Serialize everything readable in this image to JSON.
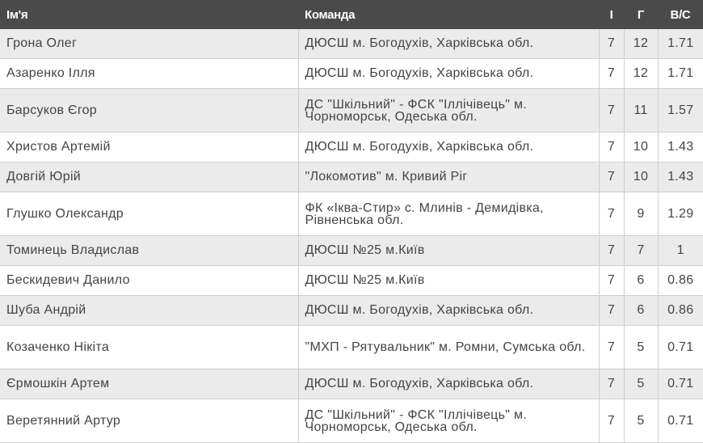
{
  "headers": {
    "name": "Ім'я",
    "team": "Команда",
    "games": "І",
    "goals": "Г",
    "ratio": "В/С"
  },
  "rows": [
    {
      "name": "Грона Олег",
      "team": "ДЮСШ м. Богодухів, Харківська обл.",
      "games": "7",
      "goals": "12",
      "ratio": "1.71"
    },
    {
      "name": "Азаренко Ілля",
      "team": "ДЮСШ м. Богодухів, Харківська обл.",
      "games": "7",
      "goals": "12",
      "ratio": "1.71"
    },
    {
      "name": "Барсуков Єгор",
      "team": "ДС \"Шкільний\" - ФСК \"Іллічівець\" м. Чорноморськ, Одеська обл.",
      "games": "7",
      "goals": "11",
      "ratio": "1.57"
    },
    {
      "name": "Христов Артемій",
      "team": "ДЮСШ м. Богодухів, Харківська обл.",
      "games": "7",
      "goals": "10",
      "ratio": "1.43"
    },
    {
      "name": "Довгій Юрій",
      "team": "\"Локомотив\" м. Кривий Ріг",
      "games": "7",
      "goals": "10",
      "ratio": "1.43"
    },
    {
      "name": "Глушко Олександр",
      "team": "ФК «Іква-Стир» с. Млинів - Демидівка, Рівненська обл.",
      "games": "7",
      "goals": "9",
      "ratio": "1.29"
    },
    {
      "name": "Томинець Владислав",
      "team": "ДЮСШ №25 м.Київ",
      "games": "7",
      "goals": "7",
      "ratio": "1"
    },
    {
      "name": "Бескидевич Данило",
      "team": "ДЮСШ №25 м.Київ",
      "games": "7",
      "goals": "6",
      "ratio": "0.86"
    },
    {
      "name": "Шуба Андрій",
      "team": "ДЮСШ м. Богодухів, Харківська обл.",
      "games": "7",
      "goals": "6",
      "ratio": "0.86"
    },
    {
      "name": "Козаченко Нікіта",
      "team": "\"МХП - Рятувальник\" м. Ромни, Сумська обл.",
      "games": "7",
      "goals": "5",
      "ratio": "0.71"
    },
    {
      "name": "Єрмошкін Артем",
      "team": "ДЮСШ м. Богодухів, Харківська обл.",
      "games": "7",
      "goals": "5",
      "ratio": "0.71"
    },
    {
      "name": "Веретянний Артур",
      "team": "ДС \"Шкільний\" - ФСК \"Іллічівець\" м. Чорноморськ, Одеська обл.",
      "games": "7",
      "goals": "5",
      "ratio": "0.71"
    }
  ]
}
